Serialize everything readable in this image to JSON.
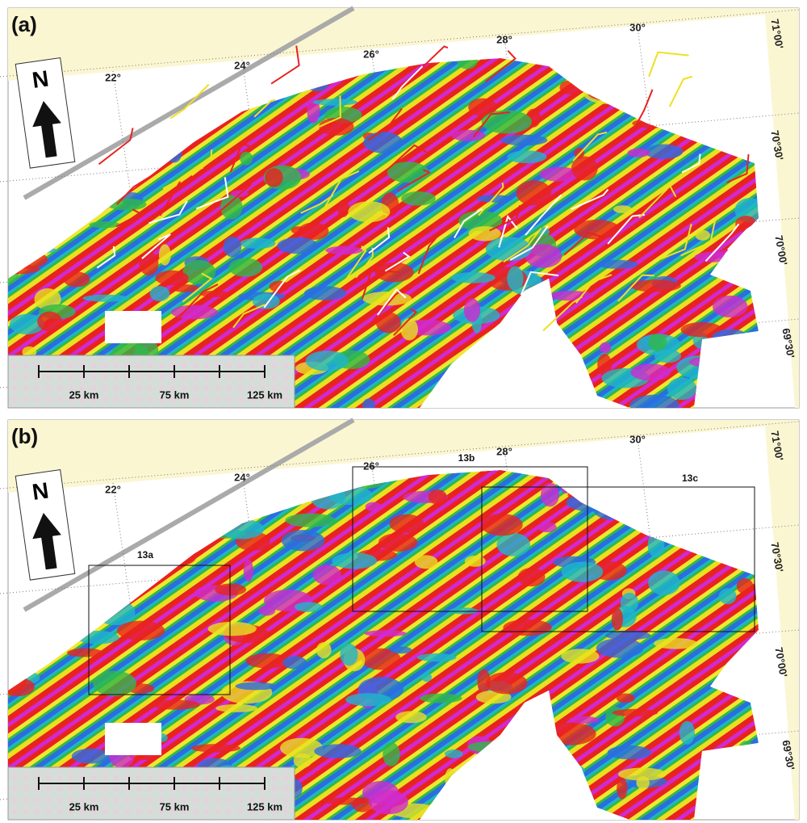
{
  "panels": [
    {
      "label": "(a)",
      "north": "N",
      "longitudes": [
        "22°",
        "24°",
        "26°",
        "28°",
        "30°"
      ],
      "latitudes": [
        "71°00'",
        "70°30'",
        "70°00'",
        "69°30'"
      ],
      "scale_bar": [
        "25 km",
        "75 km",
        "125 km"
      ]
    },
    {
      "label": "(b)",
      "north": "N",
      "longitudes": [
        "22°",
        "24°",
        "26°",
        "28°",
        "30°"
      ],
      "latitudes": [
        "71°00'",
        "70°30'",
        "70°00'",
        "69°30'"
      ],
      "scale_bar": [
        "25 km",
        "75 km",
        "125 km"
      ],
      "boxes": [
        "13a",
        "13b",
        "13c"
      ]
    }
  ]
}
